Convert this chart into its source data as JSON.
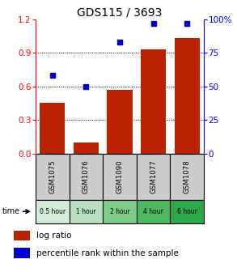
{
  "title": "GDS115 / 3693",
  "samples": [
    "GSM1075",
    "GSM1076",
    "GSM1090",
    "GSM1077",
    "GSM1078"
  ],
  "time_labels": [
    "0.5 hour",
    "1 hour",
    "2 hour",
    "4 hour",
    "6 hour"
  ],
  "log_ratios": [
    0.45,
    0.1,
    0.57,
    0.93,
    1.03
  ],
  "percentile_ranks": [
    58,
    50,
    83,
    97,
    97
  ],
  "bar_color": "#bb2200",
  "dot_color": "#0000cc",
  "left_ylim": [
    0,
    1.2
  ],
  "right_ylim": [
    0,
    100
  ],
  "left_yticks": [
    0,
    0.3,
    0.6,
    0.9,
    1.2
  ],
  "right_yticks": [
    0,
    25,
    50,
    75,
    100
  ],
  "right_yticklabels": [
    "0",
    "25",
    "50",
    "75",
    "100%"
  ],
  "time_colors": [
    "#d4edda",
    "#b8dfc0",
    "#7ecb8a",
    "#4db860",
    "#2da84a"
  ],
  "sample_bg_color": "#cccccc",
  "bar_width": 0.75,
  "title_fontsize": 10,
  "tick_fontsize": 7.5,
  "label_fontsize": 7,
  "legend_fontsize": 7.5
}
